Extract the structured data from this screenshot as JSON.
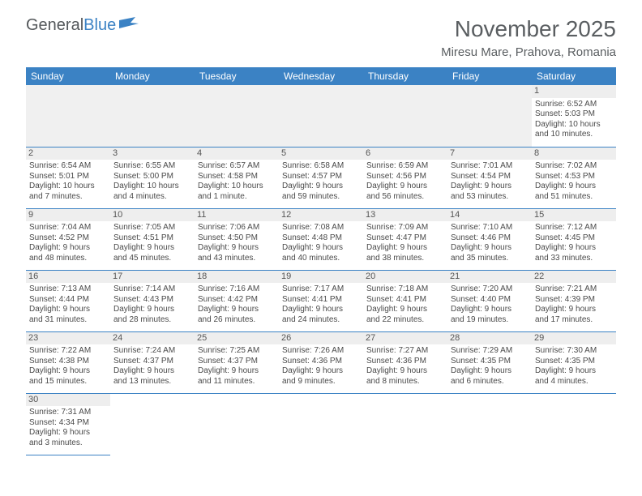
{
  "logo": {
    "general": "General",
    "blue": "Blue"
  },
  "title": "November 2025",
  "location": "Miresu Mare, Prahova, Romania",
  "colors": {
    "header_bg": "#3b82c4",
    "header_text": "#ffffff",
    "text": "#4a4a4a",
    "title_text": "#5a5e61",
    "daynum_bg": "#eeeeee",
    "border": "#3b82c4"
  },
  "weekdays": [
    "Sunday",
    "Monday",
    "Tuesday",
    "Wednesday",
    "Thursday",
    "Friday",
    "Saturday"
  ],
  "weeks": [
    [
      null,
      null,
      null,
      null,
      null,
      null,
      {
        "n": "1",
        "sr": "Sunrise: 6:52 AM",
        "ss": "Sunset: 5:03 PM",
        "d1": "Daylight: 10 hours",
        "d2": "and 10 minutes."
      }
    ],
    [
      {
        "n": "2",
        "sr": "Sunrise: 6:54 AM",
        "ss": "Sunset: 5:01 PM",
        "d1": "Daylight: 10 hours",
        "d2": "and 7 minutes."
      },
      {
        "n": "3",
        "sr": "Sunrise: 6:55 AM",
        "ss": "Sunset: 5:00 PM",
        "d1": "Daylight: 10 hours",
        "d2": "and 4 minutes."
      },
      {
        "n": "4",
        "sr": "Sunrise: 6:57 AM",
        "ss": "Sunset: 4:58 PM",
        "d1": "Daylight: 10 hours",
        "d2": "and 1 minute."
      },
      {
        "n": "5",
        "sr": "Sunrise: 6:58 AM",
        "ss": "Sunset: 4:57 PM",
        "d1": "Daylight: 9 hours",
        "d2": "and 59 minutes."
      },
      {
        "n": "6",
        "sr": "Sunrise: 6:59 AM",
        "ss": "Sunset: 4:56 PM",
        "d1": "Daylight: 9 hours",
        "d2": "and 56 minutes."
      },
      {
        "n": "7",
        "sr": "Sunrise: 7:01 AM",
        "ss": "Sunset: 4:54 PM",
        "d1": "Daylight: 9 hours",
        "d2": "and 53 minutes."
      },
      {
        "n": "8",
        "sr": "Sunrise: 7:02 AM",
        "ss": "Sunset: 4:53 PM",
        "d1": "Daylight: 9 hours",
        "d2": "and 51 minutes."
      }
    ],
    [
      {
        "n": "9",
        "sr": "Sunrise: 7:04 AM",
        "ss": "Sunset: 4:52 PM",
        "d1": "Daylight: 9 hours",
        "d2": "and 48 minutes."
      },
      {
        "n": "10",
        "sr": "Sunrise: 7:05 AM",
        "ss": "Sunset: 4:51 PM",
        "d1": "Daylight: 9 hours",
        "d2": "and 45 minutes."
      },
      {
        "n": "11",
        "sr": "Sunrise: 7:06 AM",
        "ss": "Sunset: 4:50 PM",
        "d1": "Daylight: 9 hours",
        "d2": "and 43 minutes."
      },
      {
        "n": "12",
        "sr": "Sunrise: 7:08 AM",
        "ss": "Sunset: 4:48 PM",
        "d1": "Daylight: 9 hours",
        "d2": "and 40 minutes."
      },
      {
        "n": "13",
        "sr": "Sunrise: 7:09 AM",
        "ss": "Sunset: 4:47 PM",
        "d1": "Daylight: 9 hours",
        "d2": "and 38 minutes."
      },
      {
        "n": "14",
        "sr": "Sunrise: 7:10 AM",
        "ss": "Sunset: 4:46 PM",
        "d1": "Daylight: 9 hours",
        "d2": "and 35 minutes."
      },
      {
        "n": "15",
        "sr": "Sunrise: 7:12 AM",
        "ss": "Sunset: 4:45 PM",
        "d1": "Daylight: 9 hours",
        "d2": "and 33 minutes."
      }
    ],
    [
      {
        "n": "16",
        "sr": "Sunrise: 7:13 AM",
        "ss": "Sunset: 4:44 PM",
        "d1": "Daylight: 9 hours",
        "d2": "and 31 minutes."
      },
      {
        "n": "17",
        "sr": "Sunrise: 7:14 AM",
        "ss": "Sunset: 4:43 PM",
        "d1": "Daylight: 9 hours",
        "d2": "and 28 minutes."
      },
      {
        "n": "18",
        "sr": "Sunrise: 7:16 AM",
        "ss": "Sunset: 4:42 PM",
        "d1": "Daylight: 9 hours",
        "d2": "and 26 minutes."
      },
      {
        "n": "19",
        "sr": "Sunrise: 7:17 AM",
        "ss": "Sunset: 4:41 PM",
        "d1": "Daylight: 9 hours",
        "d2": "and 24 minutes."
      },
      {
        "n": "20",
        "sr": "Sunrise: 7:18 AM",
        "ss": "Sunset: 4:41 PM",
        "d1": "Daylight: 9 hours",
        "d2": "and 22 minutes."
      },
      {
        "n": "21",
        "sr": "Sunrise: 7:20 AM",
        "ss": "Sunset: 4:40 PM",
        "d1": "Daylight: 9 hours",
        "d2": "and 19 minutes."
      },
      {
        "n": "22",
        "sr": "Sunrise: 7:21 AM",
        "ss": "Sunset: 4:39 PM",
        "d1": "Daylight: 9 hours",
        "d2": "and 17 minutes."
      }
    ],
    [
      {
        "n": "23",
        "sr": "Sunrise: 7:22 AM",
        "ss": "Sunset: 4:38 PM",
        "d1": "Daylight: 9 hours",
        "d2": "and 15 minutes."
      },
      {
        "n": "24",
        "sr": "Sunrise: 7:24 AM",
        "ss": "Sunset: 4:37 PM",
        "d1": "Daylight: 9 hours",
        "d2": "and 13 minutes."
      },
      {
        "n": "25",
        "sr": "Sunrise: 7:25 AM",
        "ss": "Sunset: 4:37 PM",
        "d1": "Daylight: 9 hours",
        "d2": "and 11 minutes."
      },
      {
        "n": "26",
        "sr": "Sunrise: 7:26 AM",
        "ss": "Sunset: 4:36 PM",
        "d1": "Daylight: 9 hours",
        "d2": "and 9 minutes."
      },
      {
        "n": "27",
        "sr": "Sunrise: 7:27 AM",
        "ss": "Sunset: 4:36 PM",
        "d1": "Daylight: 9 hours",
        "d2": "and 8 minutes."
      },
      {
        "n": "28",
        "sr": "Sunrise: 7:29 AM",
        "ss": "Sunset: 4:35 PM",
        "d1": "Daylight: 9 hours",
        "d2": "and 6 minutes."
      },
      {
        "n": "29",
        "sr": "Sunrise: 7:30 AM",
        "ss": "Sunset: 4:35 PM",
        "d1": "Daylight: 9 hours",
        "d2": "and 4 minutes."
      }
    ],
    [
      {
        "n": "30",
        "sr": "Sunrise: 7:31 AM",
        "ss": "Sunset: 4:34 PM",
        "d1": "Daylight: 9 hours",
        "d2": "and 3 minutes."
      },
      null,
      null,
      null,
      null,
      null,
      null
    ]
  ]
}
